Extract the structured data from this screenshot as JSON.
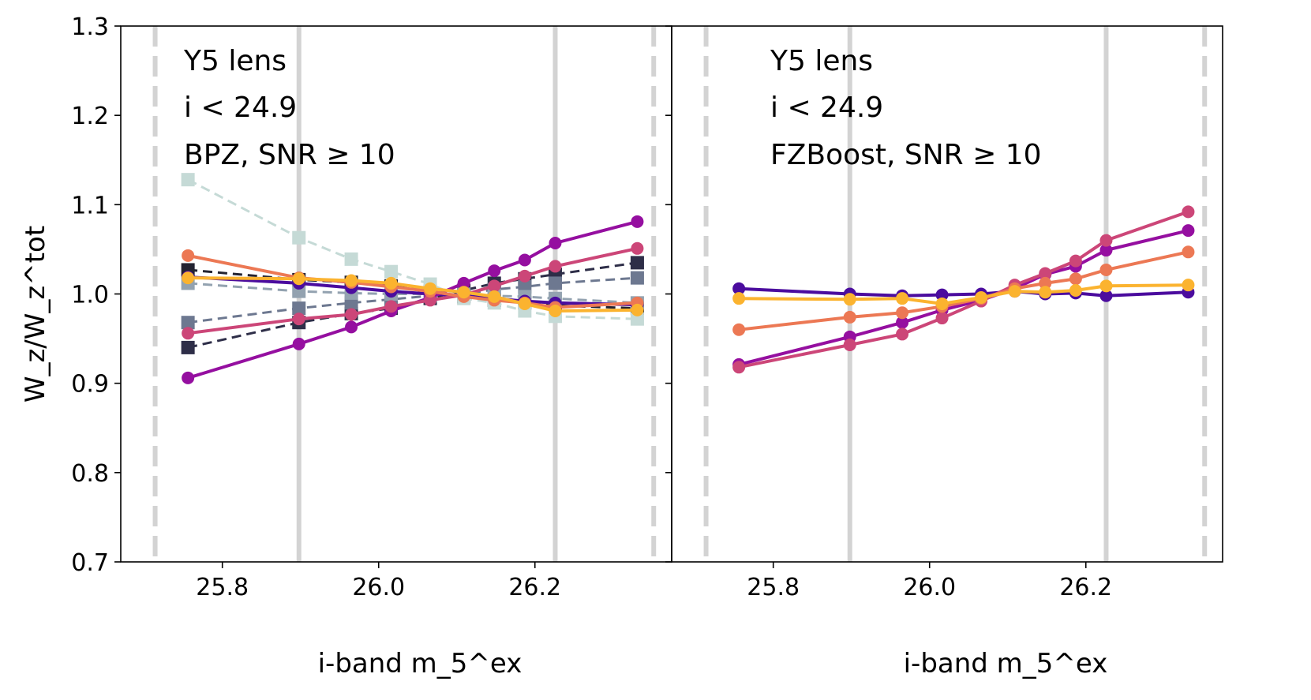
{
  "chart_data": {
    "type": "line",
    "y_axis": {
      "label": "W_z/W_z^tot",
      "ylim": [
        0.7,
        1.3
      ],
      "ticks": [
        0.7,
        0.8,
        0.9,
        1.0,
        1.1,
        1.2,
        1.3
      ],
      "tick_labels": [
        "0.7",
        "0.8",
        "0.9",
        "1.0",
        "1.1",
        "1.2",
        "1.3"
      ]
    },
    "x_axis": {
      "label": "i-band m_5^ex",
      "xlim": [
        25.67,
        26.375
      ],
      "ticks": [
        25.8,
        26.0,
        26.2
      ],
      "tick_labels": [
        "25.8",
        "26.0",
        "26.2"
      ]
    },
    "reference_lines": {
      "solid_gray": [
        25.898,
        26.226
      ],
      "dashed_gray": [
        25.714,
        26.352
      ]
    },
    "x": [
      25.756,
      25.898,
      25.965,
      26.016,
      26.066,
      26.109,
      26.148,
      26.187,
      26.226,
      26.331
    ],
    "panels": [
      {
        "annotations": [
          "Y5 lens",
          "i < 24.9",
          "BPZ, SNR ≥ 10"
        ],
        "series": [
          {
            "style": "solid-circle",
            "color": "#4b0c9e",
            "values": [
              1.019,
              1.012,
              1.007,
              1.003,
              1.0,
              0.998,
              0.995,
              0.992,
              0.99,
              0.988
            ]
          },
          {
            "style": "solid-circle",
            "color": "#950fa0",
            "values": [
              0.906,
              0.944,
              0.963,
              0.981,
              0.996,
              1.012,
              1.026,
              1.038,
              1.057,
              1.081
            ]
          },
          {
            "style": "solid-circle",
            "color": "#cc4678",
            "values": [
              0.956,
              0.972,
              0.977,
              0.986,
              0.993,
              0.999,
              1.009,
              1.02,
              1.031,
              1.051
            ]
          },
          {
            "style": "solid-circle",
            "color": "#ec7854",
            "values": [
              1.043,
              1.018,
              1.013,
              1.008,
              1.003,
              0.997,
              0.993,
              0.99,
              0.985,
              0.99
            ]
          },
          {
            "style": "solid-circle",
            "color": "#fbb32f",
            "values": [
              1.018,
              1.017,
              1.015,
              1.012,
              1.006,
              1.002,
              0.997,
              0.989,
              0.981,
              0.982
            ]
          },
          {
            "style": "dashed-square",
            "color": "#2e2e48",
            "values": [
              0.94,
              0.968,
              0.978,
              0.984,
              0.995,
              1.004,
              1.012,
              1.017,
              1.022,
              1.035
            ]
          },
          {
            "style": "dashed-square",
            "color": "#232331",
            "values": [
              1.027,
              1.016,
              1.013,
              1.009,
              1.003,
              0.997,
              0.993,
              0.99,
              0.987,
              0.984
            ]
          },
          {
            "style": "dashed-square",
            "color": "#6d7890",
            "values": [
              0.968,
              0.984,
              0.99,
              0.994,
              0.998,
              1.0,
              1.005,
              1.008,
              1.012,
              1.018
            ]
          },
          {
            "style": "dashed-square",
            "color": "#93a2b0",
            "values": [
              1.012,
              1.003,
              1.001,
              1.0,
              1.0,
              0.999,
              0.998,
              0.997,
              0.995,
              0.99
            ]
          },
          {
            "style": "dashed-square",
            "color": "#c5dad6",
            "values": [
              1.128,
              1.063,
              1.039,
              1.025,
              1.011,
              0.995,
              0.99,
              0.981,
              0.975,
              0.972
            ]
          }
        ]
      },
      {
        "annotations": [
          "Y5 lens",
          "i < 24.9",
          "FZBoost, SNR ≥ 10"
        ],
        "series": [
          {
            "style": "solid-circle",
            "color": "#4b0c9e",
            "values": [
              1.006,
              1.0,
              0.998,
              0.999,
              1.0,
              1.003,
              1.0,
              1.001,
              0.998,
              1.002
            ]
          },
          {
            "style": "solid-circle",
            "color": "#950fa0",
            "values": [
              0.921,
              0.952,
              0.968,
              0.982,
              0.993,
              1.006,
              1.022,
              1.031,
              1.049,
              1.071
            ]
          },
          {
            "style": "solid-circle",
            "color": "#cc4678",
            "values": [
              0.918,
              0.943,
              0.955,
              0.973,
              0.992,
              1.01,
              1.023,
              1.037,
              1.06,
              1.092
            ]
          },
          {
            "style": "solid-circle",
            "color": "#ec7854",
            "values": [
              0.96,
              0.974,
              0.979,
              0.986,
              0.995,
              1.006,
              1.012,
              1.017,
              1.027,
              1.047
            ]
          },
          {
            "style": "solid-circle",
            "color": "#fbb32f",
            "values": [
              0.995,
              0.994,
              0.995,
              0.989,
              0.996,
              1.003,
              1.002,
              1.004,
              1.009,
              1.01
            ]
          }
        ]
      }
    ]
  }
}
